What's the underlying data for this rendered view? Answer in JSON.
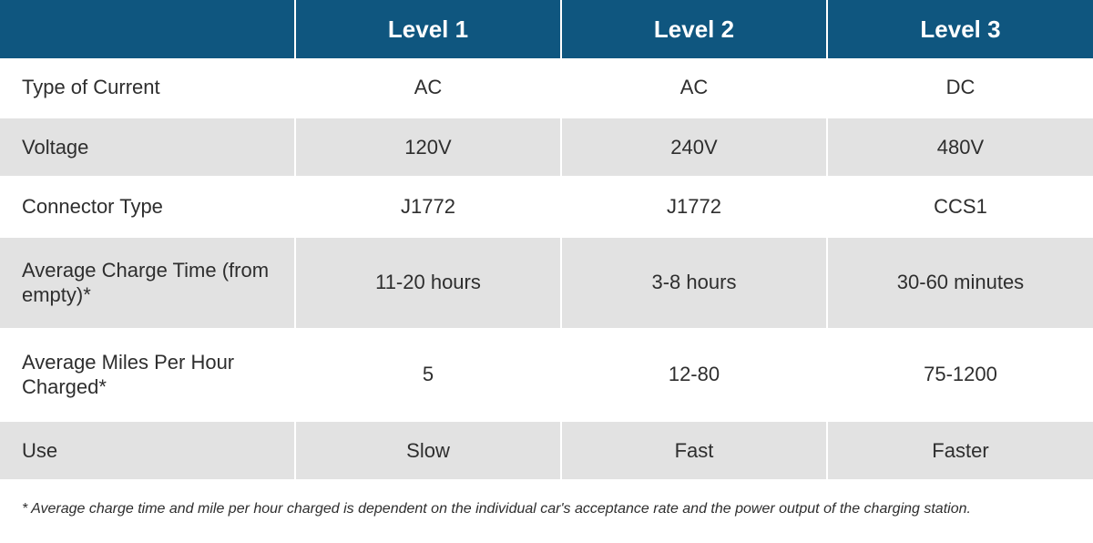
{
  "table": {
    "type": "table",
    "header_bg": "#0f567f",
    "header_fg": "#ffffff",
    "row_alt_bg": "#e2e2e2",
    "text_color": "#2e2e2e",
    "label_fontsize": 22,
    "header_fontsize": 26,
    "column_widths_pct": [
      27,
      24.333,
      24.333,
      24.333
    ],
    "columns": [
      "",
      "Level 1",
      "Level 2",
      "Level 3"
    ],
    "rows": [
      {
        "label": "Type of Current",
        "values": [
          "AC",
          "AC",
          "DC"
        ],
        "tall": false
      },
      {
        "label": "Voltage",
        "values": [
          "120V",
          "240V",
          "480V"
        ],
        "tall": false
      },
      {
        "label": "Connector Type",
        "values": [
          "J1772",
          "J1772",
          "CCS1"
        ],
        "tall": false
      },
      {
        "label": "Average Charge Time (from empty)*",
        "values": [
          "11-20 hours",
          "3-8 hours",
          "30-60 minutes"
        ],
        "tall": true
      },
      {
        "label": "Average Miles Per Hour Charged*",
        "values": [
          "5",
          "12-80",
          "75-1200"
        ],
        "tall": true
      },
      {
        "label": "Use",
        "values": [
          "Slow",
          "Fast",
          "Faster"
        ],
        "tall": false
      }
    ]
  },
  "footnote": "* Average charge time and mile per hour charged is dependent on the individual car's acceptance rate and the power output of the charging station."
}
